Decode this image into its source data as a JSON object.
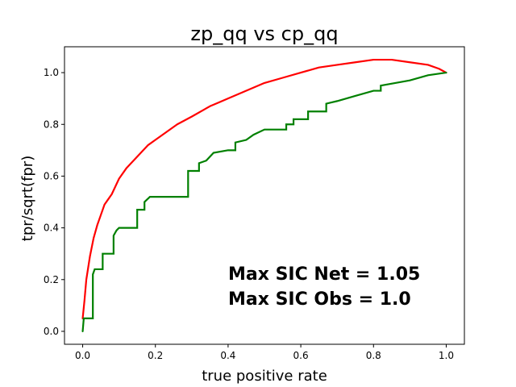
{
  "chart_data": {
    "type": "line",
    "title": "zp_qq vs cp_qq",
    "xlabel": "true positive rate",
    "ylabel": "tpr/sqrt(fpr)",
    "xlim": [
      -0.05,
      1.05
    ],
    "ylim": [
      -0.05,
      1.1
    ],
    "x_ticks": [
      0.0,
      0.2,
      0.4,
      0.6,
      0.8,
      1.0
    ],
    "x_tick_labels": [
      "0.0",
      "0.2",
      "0.4",
      "0.6",
      "0.8",
      "1.0"
    ],
    "y_ticks": [
      0.0,
      0.2,
      0.4,
      0.6,
      0.8,
      1.0
    ],
    "y_tick_labels": [
      "0.0",
      "0.2",
      "0.4",
      "0.6",
      "0.8",
      "1.0"
    ],
    "grid": false,
    "legend": "none",
    "annotations": [
      "Max SIC Net = 1.05",
      "Max SIC Obs = 1.0"
    ],
    "series": [
      {
        "color": "#ff0000",
        "style": "smooth",
        "points": [
          [
            0.0,
            0.05
          ],
          [
            0.005,
            0.12
          ],
          [
            0.01,
            0.2
          ],
          [
            0.02,
            0.29
          ],
          [
            0.03,
            0.36
          ],
          [
            0.04,
            0.41
          ],
          [
            0.05,
            0.45
          ],
          [
            0.06,
            0.49
          ],
          [
            0.07,
            0.51
          ],
          [
            0.08,
            0.53
          ],
          [
            0.09,
            0.56
          ],
          [
            0.1,
            0.59
          ],
          [
            0.12,
            0.63
          ],
          [
            0.14,
            0.66
          ],
          [
            0.16,
            0.69
          ],
          [
            0.18,
            0.72
          ],
          [
            0.2,
            0.74
          ],
          [
            0.23,
            0.77
          ],
          [
            0.26,
            0.8
          ],
          [
            0.3,
            0.83
          ],
          [
            0.35,
            0.87
          ],
          [
            0.4,
            0.9
          ],
          [
            0.45,
            0.93
          ],
          [
            0.5,
            0.96
          ],
          [
            0.55,
            0.98
          ],
          [
            0.6,
            1.0
          ],
          [
            0.65,
            1.02
          ],
          [
            0.7,
            1.03
          ],
          [
            0.75,
            1.04
          ],
          [
            0.8,
            1.05
          ],
          [
            0.85,
            1.05
          ],
          [
            0.9,
            1.04
          ],
          [
            0.95,
            1.03
          ],
          [
            0.98,
            1.015
          ],
          [
            1.0,
            1.0
          ]
        ]
      },
      {
        "color": "#008000",
        "style": "steps",
        "points": [
          [
            0.0,
            0.0
          ],
          [
            0.003,
            0.05
          ],
          [
            0.028,
            0.05
          ],
          [
            0.028,
            0.22
          ],
          [
            0.033,
            0.24
          ],
          [
            0.055,
            0.24
          ],
          [
            0.055,
            0.3
          ],
          [
            0.085,
            0.3
          ],
          [
            0.085,
            0.37
          ],
          [
            0.093,
            0.39
          ],
          [
            0.1,
            0.4
          ],
          [
            0.15,
            0.4
          ],
          [
            0.15,
            0.47
          ],
          [
            0.17,
            0.47
          ],
          [
            0.17,
            0.5
          ],
          [
            0.185,
            0.52
          ],
          [
            0.29,
            0.52
          ],
          [
            0.29,
            0.62
          ],
          [
            0.32,
            0.62
          ],
          [
            0.32,
            0.65
          ],
          [
            0.34,
            0.66
          ],
          [
            0.36,
            0.69
          ],
          [
            0.4,
            0.7
          ],
          [
            0.42,
            0.7
          ],
          [
            0.42,
            0.73
          ],
          [
            0.45,
            0.74
          ],
          [
            0.47,
            0.76
          ],
          [
            0.5,
            0.78
          ],
          [
            0.56,
            0.78
          ],
          [
            0.56,
            0.8
          ],
          [
            0.58,
            0.8
          ],
          [
            0.58,
            0.82
          ],
          [
            0.62,
            0.82
          ],
          [
            0.62,
            0.85
          ],
          [
            0.67,
            0.85
          ],
          [
            0.67,
            0.88
          ],
          [
            0.7,
            0.89
          ],
          [
            0.75,
            0.91
          ],
          [
            0.8,
            0.93
          ],
          [
            0.82,
            0.93
          ],
          [
            0.82,
            0.95
          ],
          [
            0.86,
            0.96
          ],
          [
            0.9,
            0.97
          ],
          [
            0.95,
            0.99
          ],
          [
            1.0,
            1.0
          ]
        ]
      }
    ]
  }
}
